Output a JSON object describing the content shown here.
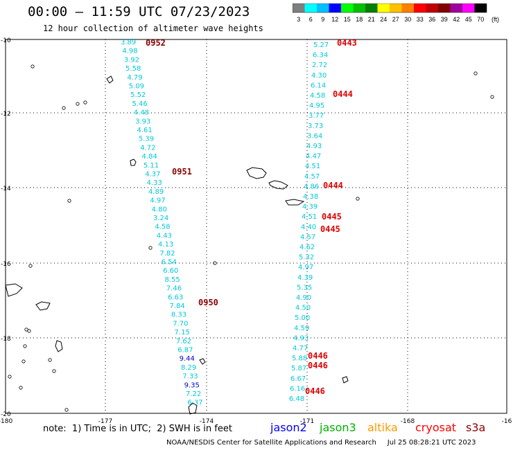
{
  "header": {
    "title": "00:00 – 11:59 UTC 07/23/2023",
    "subtitle": "12 hour collection of altimeter wave heights"
  },
  "scale": {
    "labels": [
      "3",
      "6",
      "9",
      "12",
      "15",
      "18",
      "21",
      "24",
      "27",
      "30",
      "33",
      "36",
      "39",
      "42",
      "45",
      "70"
    ],
    "unit": "(ft)",
    "colors": [
      "#7f7f7f",
      "#00ffff",
      "#00c0ff",
      "#0000ff",
      "#00ff00",
      "#00c000",
      "#008000",
      "#ffff00",
      "#ffc000",
      "#ff8000",
      "#ff0000",
      "#c00000",
      "#800000",
      "#a000a0",
      "#ff00ff",
      "#000000"
    ]
  },
  "map": {
    "lat_labels": [
      "-10",
      "-12",
      "-14",
      "-16",
      "-18",
      "-20"
    ],
    "lon_labels": [
      "-180",
      "-177",
      "-174",
      "-171",
      "-168",
      "-16"
    ],
    "time_labels": [
      {
        "text": "0952",
        "color": "#8b0000"
      },
      {
        "text": "0951",
        "color": "#8b0000"
      },
      {
        "text": "0950",
        "color": "#8b0000"
      },
      {
        "text": "0443",
        "color": "#e00000"
      },
      {
        "text": "0444",
        "color": "#e00000"
      },
      {
        "text": "0444",
        "color": "#e00000"
      },
      {
        "text": "0445",
        "color": "#e00000"
      },
      {
        "text": "0445",
        "color": "#e00000"
      },
      {
        "text": "0446",
        "color": "#e00000"
      },
      {
        "text": "0446",
        "color": "#e00000"
      },
      {
        "text": "0446",
        "color": "#e00000"
      }
    ],
    "track_west": [
      "3.89",
      "4.98",
      "3.92",
      "5.58",
      "4.79",
      "5.09",
      "5.52",
      "5.46",
      "4.48",
      "3.93",
      "4.61",
      "5.39",
      "4.72",
      "4.84",
      "5.11",
      "4.37",
      "4.33",
      "4.89",
      "4.97",
      "4.80",
      "3.24",
      "4.58",
      "4.43",
      "4.13",
      "7.82",
      "6.54",
      "6.60",
      "8.55",
      "7.46",
      "6.63",
      "7.84",
      "8.33",
      "7.70",
      "7.15",
      "7.62",
      "6.87",
      "9.44",
      "8.29",
      "7.33",
      "9.35",
      "7.22",
      "6.37"
    ],
    "track_east": [
      "5.27",
      "6.34",
      "2.72",
      "4.30",
      "6.14",
      "4.58",
      "4.95",
      "3.77",
      "3.73",
      "3.64",
      "4.93",
      "4.47",
      "4.51",
      "4.57",
      "4.86",
      "4.38",
      "4.39",
      "4.51",
      "4.40",
      "4.57",
      "4.62",
      "5.32",
      "4.97",
      "4.39",
      "5.35",
      "4.90",
      "4.50",
      "5.00",
      "4.59",
      "4.93",
      "4.77",
      "5.88",
      "5.87",
      "6.67",
      "6.16",
      "6.48"
    ]
  },
  "footer": {
    "note": "note:  1) Time is in UTC;  2) SWH is in feet",
    "satellites": [
      {
        "name": "jason2",
        "color": "#0000ff"
      },
      {
        "name": "jason3",
        "color": "#00b000"
      },
      {
        "name": "altika",
        "color": "#ff9900"
      },
      {
        "name": "cryosat",
        "color": "#ff0000"
      },
      {
        "name": "s3a",
        "color": "#8b0000"
      }
    ],
    "credit": "NOAA/NESDIS Center for Satellite Applications and Research     Jul 25 08:28:21 UTC 2023"
  }
}
